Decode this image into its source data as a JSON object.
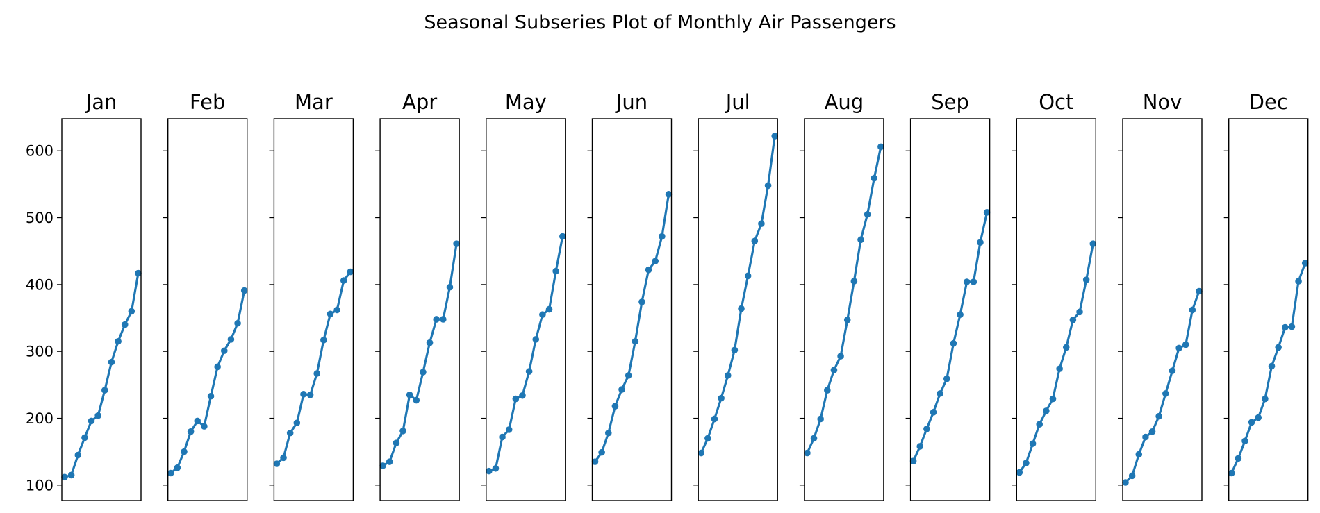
{
  "chart_data": {
    "type": "line",
    "title": "Seasonal Subseries Plot of Monthly Air Passengers",
    "xlabel": "",
    "ylabel": "",
    "ylim": [
      77,
      648
    ],
    "y_ticks": [
      100,
      200,
      300,
      400,
      500,
      600
    ],
    "y_tick_labels": [
      "100",
      "200",
      "300",
      "400",
      "500",
      "600"
    ],
    "shared_y": true,
    "grid": false,
    "series_color": "#1f77b4",
    "panels": [
      {
        "title": "Jan",
        "values": [
          112,
          115,
          145,
          171,
          196,
          204,
          242,
          284,
          315,
          340,
          360,
          417
        ]
      },
      {
        "title": "Feb",
        "values": [
          118,
          126,
          150,
          180,
          196,
          188,
          233,
          277,
          301,
          318,
          342,
          391
        ]
      },
      {
        "title": "Mar",
        "values": [
          132,
          141,
          178,
          193,
          236,
          235,
          267,
          317,
          356,
          362,
          406,
          419
        ]
      },
      {
        "title": "Apr",
        "values": [
          129,
          135,
          163,
          181,
          235,
          227,
          269,
          313,
          348,
          348,
          396,
          461
        ]
      },
      {
        "title": "May",
        "values": [
          121,
          125,
          172,
          183,
          229,
          234,
          270,
          318,
          355,
          363,
          420,
          472
        ]
      },
      {
        "title": "Jun",
        "values": [
          135,
          149,
          178,
          218,
          243,
          264,
          315,
          374,
          422,
          435,
          472,
          535
        ]
      },
      {
        "title": "Jul",
        "values": [
          148,
          170,
          199,
          230,
          264,
          302,
          364,
          413,
          465,
          491,
          548,
          622
        ]
      },
      {
        "title": "Aug",
        "values": [
          148,
          170,
          199,
          242,
          272,
          293,
          347,
          405,
          467,
          505,
          559,
          606
        ]
      },
      {
        "title": "Sep",
        "values": [
          136,
          158,
          184,
          209,
          237,
          259,
          312,
          355,
          404,
          404,
          463,
          508
        ]
      },
      {
        "title": "Oct",
        "values": [
          119,
          133,
          162,
          191,
          211,
          229,
          274,
          306,
          347,
          359,
          407,
          461
        ]
      },
      {
        "title": "Nov",
        "values": [
          104,
          114,
          146,
          172,
          180,
          203,
          237,
          271,
          305,
          310,
          362,
          390
        ]
      },
      {
        "title": "Dec",
        "values": [
          118,
          140,
          166,
          194,
          201,
          229,
          278,
          306,
          336,
          337,
          405,
          432
        ]
      }
    ]
  }
}
